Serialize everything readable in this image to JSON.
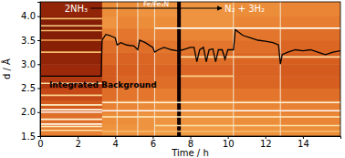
{
  "chart_data": {
    "type": "heatmap",
    "x_label": "Time / h",
    "y_label": "d / Å",
    "xlim": [
      0,
      16
    ],
    "ylim": [
      1.5,
      4.3
    ],
    "xticks": [
      0,
      2,
      4,
      6,
      8,
      10,
      12,
      14
    ],
    "yticks": [
      1.5,
      {
        "value": 2.0,
        "label": "2.0"
      },
      2.5,
      {
        "value": 3.0,
        "label": "3.0"
      },
      3.5,
      {
        "value": 4.0,
        "label": "4.0"
      }
    ],
    "annotations": [
      "2NH₃",
      "Fe/Fe₄N",
      "N₂ + 3H₂"
    ],
    "heatmap": {
      "x_edges": [
        0,
        3.3,
        4.1,
        5.2,
        6.1,
        7.3,
        7.5,
        10.3,
        12.8,
        16
      ],
      "y_edges": [
        1.5,
        1.75,
        2.0,
        2.25,
        2.5,
        2.75,
        3.0,
        3.25,
        3.5,
        3.75,
        4.0,
        4.3
      ],
      "z": [
        [
          0.55,
          0.6,
          0.6,
          0.6,
          0.62,
          0.05,
          0.62,
          0.6,
          0.58
        ],
        [
          0.5,
          0.58,
          0.58,
          0.6,
          0.6,
          0.05,
          0.6,
          0.58,
          0.56
        ],
        [
          0.45,
          0.55,
          0.56,
          0.57,
          0.58,
          0.05,
          0.58,
          0.56,
          0.55
        ],
        [
          0.4,
          0.5,
          0.52,
          0.52,
          0.54,
          0.05,
          0.54,
          0.52,
          0.5
        ],
        [
          0.35,
          0.45,
          0.48,
          0.48,
          0.5,
          0.05,
          0.5,
          0.48,
          0.46
        ],
        [
          0.3,
          0.45,
          0.46,
          0.47,
          0.48,
          0.05,
          0.48,
          0.47,
          0.45
        ],
        [
          0.28,
          0.48,
          0.47,
          0.48,
          0.5,
          0.05,
          0.5,
          0.48,
          0.46
        ],
        [
          0.26,
          0.5,
          0.5,
          0.5,
          0.52,
          0.05,
          0.52,
          0.5,
          0.48
        ],
        [
          0.25,
          0.55,
          0.52,
          0.55,
          0.55,
          0.05,
          0.56,
          0.52,
          0.5
        ],
        [
          0.25,
          0.6,
          0.56,
          0.58,
          0.58,
          0.05,
          0.6,
          0.56,
          0.54
        ],
        [
          0.28,
          0.58,
          0.58,
          0.6,
          0.6,
          0.05,
          0.6,
          0.58,
          0.56
        ]
      ]
    },
    "peaks": {
      "d": [
        3.95,
        3.8,
        3.7,
        3.5,
        3.25,
        2.6,
        2.35,
        2.15,
        2.05,
        2.0,
        1.85,
        1.75,
        1.7,
        1.62,
        3.75,
        3.15,
        2.75,
        2.2,
        2.03,
        1.9,
        1.72,
        1.6
      ],
      "t0": [
        0,
        0,
        0,
        0,
        0,
        0,
        0,
        0,
        0,
        0,
        0,
        0,
        0,
        0,
        6.1,
        7.5,
        7.5,
        3.3,
        3.3,
        3.3,
        6.1,
        3.3
      ],
      "t1": [
        3.3,
        3.3,
        3.3,
        3.3,
        3.3,
        3.3,
        3.3,
        3.3,
        3.3,
        3.3,
        3.3,
        3.3,
        3.3,
        3.3,
        16,
        16,
        10.3,
        16,
        16,
        16,
        16,
        16
      ],
      "z": [
        0.7,
        0.75,
        0.7,
        0.65,
        0.7,
        0.8,
        0.75,
        0.85,
        0.95,
        1.0,
        0.9,
        0.95,
        0.85,
        0.8,
        0.95,
        0.8,
        0.75,
        0.9,
        1.0,
        0.85,
        0.8,
        0.7
      ]
    },
    "vlines": [
      4.1,
      5.2,
      6.1,
      10.3,
      12.8
    ],
    "series": [
      {
        "name": "Integrated Background",
        "color": "#000000",
        "x": [
          0,
          3.25,
          3.3,
          3.5,
          3.7,
          4.0,
          4.1,
          4.3,
          4.6,
          5.0,
          5.2,
          5.3,
          5.6,
          6.0,
          6.1,
          6.3,
          6.6,
          7.0,
          7.3,
          7.6,
          8.0,
          8.2,
          8.35,
          8.5,
          8.7,
          8.85,
          9.0,
          9.2,
          9.35,
          9.5,
          9.7,
          9.85,
          10.0,
          10.3,
          10.4,
          10.8,
          11.2,
          11.6,
          12.0,
          12.4,
          12.7,
          12.8,
          12.9,
          13.2,
          13.6,
          14.0,
          14.4,
          14.8,
          15.2,
          15.6,
          16
        ],
        "values": [
          2.75,
          2.75,
          3.5,
          3.62,
          3.6,
          3.55,
          3.4,
          3.45,
          3.4,
          3.38,
          3.3,
          3.5,
          3.45,
          3.35,
          3.25,
          3.3,
          3.35,
          3.3,
          3.28,
          3.3,
          3.35,
          3.35,
          3.05,
          3.3,
          3.35,
          3.05,
          3.3,
          3.32,
          3.05,
          3.3,
          3.3,
          3.1,
          3.3,
          3.3,
          3.72,
          3.6,
          3.55,
          3.5,
          3.48,
          3.45,
          3.4,
          3.0,
          3.2,
          3.25,
          3.3,
          3.28,
          3.3,
          3.25,
          3.2,
          3.25,
          3.28
        ]
      }
    ]
  }
}
